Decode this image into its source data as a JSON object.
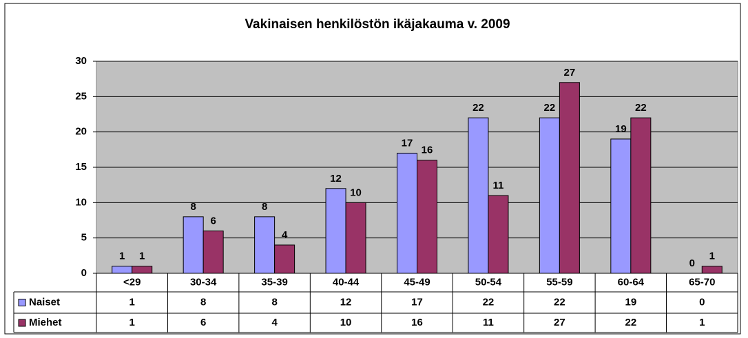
{
  "chart_data": {
    "type": "bar",
    "title": "Vakinaisen henkilöstön ikäjakauma v. 2009",
    "categories": [
      "<29",
      "30-34",
      "35-39",
      "40-44",
      "45-49",
      "50-54",
      "55-59",
      "60-64",
      "65-70"
    ],
    "series": [
      {
        "name": "Naiset",
        "color": "#9999ff",
        "values": [
          1,
          8,
          8,
          12,
          17,
          22,
          22,
          19,
          0
        ]
      },
      {
        "name": "Miehet",
        "color": "#993366",
        "values": [
          1,
          6,
          4,
          10,
          16,
          11,
          27,
          22,
          1
        ]
      }
    ],
    "ylim": [
      0,
      30
    ],
    "yticks": [
      0,
      5,
      10,
      15,
      20,
      25,
      30
    ],
    "grid": true,
    "data_table": true
  }
}
